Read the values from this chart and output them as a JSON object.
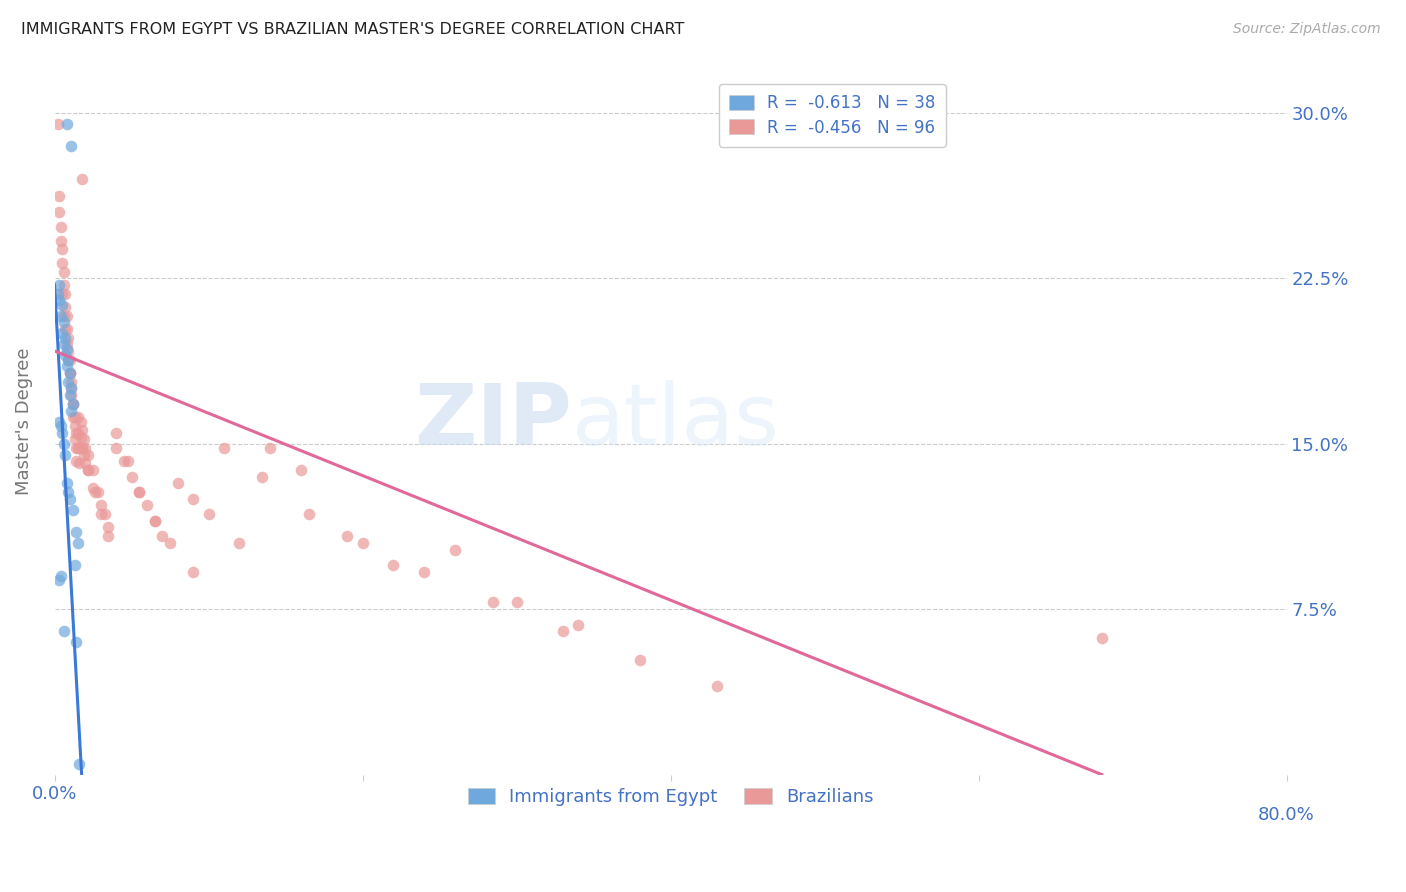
{
  "title": "IMMIGRANTS FROM EGYPT VS BRAZILIAN MASTER'S DEGREE CORRELATION CHART",
  "source": "Source: ZipAtlas.com",
  "watermark_zip": "ZIP",
  "watermark_atlas": "atlas",
  "ylabel": "Master's Degree",
  "ytick_labels": [
    "30.0%",
    "22.5%",
    "15.0%",
    "7.5%"
  ],
  "ytick_values": [
    0.3,
    0.225,
    0.15,
    0.075
  ],
  "xtick_labels_bottom": [
    "0.0%",
    "",
    "",
    "",
    "80.0%"
  ],
  "xtick_values_bottom": [
    0.0,
    0.2,
    0.4,
    0.6,
    0.8
  ],
  "xlim": [
    0.0,
    0.8
  ],
  "ylim": [
    0.0,
    0.32
  ],
  "legend_egypt": "R =  -0.613   N = 38",
  "legend_brazil": "R =  -0.456   N = 96",
  "egypt_color": "#6fa8dc",
  "brazil_color": "#ea9999",
  "egypt_line_color": "#3c78d8",
  "brazil_line_color": "#e06999",
  "egypt_scatter_x": [
    0.008,
    0.011,
    0.003,
    0.002,
    0.003,
    0.005,
    0.004,
    0.006,
    0.005,
    0.007,
    0.006,
    0.008,
    0.007,
    0.009,
    0.008,
    0.01,
    0.009,
    0.011,
    0.01,
    0.012,
    0.011,
    0.003,
    0.004,
    0.005,
    0.006,
    0.007,
    0.008,
    0.009,
    0.01,
    0.012,
    0.014,
    0.015,
    0.013,
    0.004,
    0.003,
    0.006,
    0.014,
    0.016
  ],
  "egypt_scatter_y": [
    0.295,
    0.285,
    0.222,
    0.218,
    0.215,
    0.213,
    0.208,
    0.205,
    0.2,
    0.198,
    0.195,
    0.193,
    0.19,
    0.188,
    0.185,
    0.182,
    0.178,
    0.175,
    0.172,
    0.168,
    0.165,
    0.16,
    0.158,
    0.155,
    0.15,
    0.145,
    0.132,
    0.128,
    0.125,
    0.12,
    0.11,
    0.105,
    0.095,
    0.09,
    0.088,
    0.065,
    0.06,
    0.005
  ],
  "brazil_scatter_x": [
    0.002,
    0.018,
    0.003,
    0.003,
    0.004,
    0.004,
    0.005,
    0.005,
    0.006,
    0.006,
    0.007,
    0.007,
    0.008,
    0.008,
    0.009,
    0.009,
    0.01,
    0.01,
    0.011,
    0.011,
    0.012,
    0.012,
    0.013,
    0.013,
    0.014,
    0.014,
    0.015,
    0.015,
    0.016,
    0.016,
    0.017,
    0.017,
    0.018,
    0.018,
    0.019,
    0.019,
    0.02,
    0.02,
    0.022,
    0.022,
    0.025,
    0.025,
    0.028,
    0.03,
    0.033,
    0.035,
    0.04,
    0.045,
    0.05,
    0.055,
    0.06,
    0.065,
    0.07,
    0.08,
    0.09,
    0.1,
    0.12,
    0.14,
    0.16,
    0.19,
    0.22,
    0.26,
    0.3,
    0.34,
    0.005,
    0.006,
    0.007,
    0.008,
    0.009,
    0.01,
    0.011,
    0.012,
    0.013,
    0.014,
    0.015,
    0.018,
    0.022,
    0.026,
    0.03,
    0.035,
    0.04,
    0.048,
    0.055,
    0.065,
    0.075,
    0.09,
    0.11,
    0.135,
    0.165,
    0.2,
    0.24,
    0.285,
    0.33,
    0.38,
    0.43,
    0.68
  ],
  "brazil_scatter_y": [
    0.295,
    0.27,
    0.262,
    0.255,
    0.248,
    0.242,
    0.238,
    0.232,
    0.228,
    0.222,
    0.218,
    0.212,
    0.208,
    0.202,
    0.198,
    0.192,
    0.188,
    0.182,
    0.178,
    0.172,
    0.168,
    0.162,
    0.158,
    0.152,
    0.148,
    0.142,
    0.162,
    0.155,
    0.148,
    0.141,
    0.16,
    0.153,
    0.156,
    0.148,
    0.152,
    0.145,
    0.148,
    0.141,
    0.145,
    0.138,
    0.138,
    0.13,
    0.128,
    0.122,
    0.118,
    0.112,
    0.148,
    0.142,
    0.135,
    0.128,
    0.122,
    0.115,
    0.108,
    0.132,
    0.125,
    0.118,
    0.105,
    0.148,
    0.138,
    0.108,
    0.095,
    0.102,
    0.078,
    0.068,
    0.218,
    0.208,
    0.202,
    0.195,
    0.188,
    0.182,
    0.175,
    0.168,
    0.162,
    0.155,
    0.148,
    0.148,
    0.138,
    0.128,
    0.118,
    0.108,
    0.155,
    0.142,
    0.128,
    0.115,
    0.105,
    0.092,
    0.148,
    0.135,
    0.118,
    0.105,
    0.092,
    0.078,
    0.065,
    0.052,
    0.04,
    0.062
  ],
  "egypt_trendline_x": [
    0.0,
    0.018
  ],
  "egypt_trendline_y": [
    0.222,
    -0.005
  ],
  "brazil_trendline_x": [
    0.0,
    0.68
  ],
  "brazil_trendline_y": [
    0.192,
    0.0
  ],
  "background_color": "#ffffff",
  "grid_color": "#cccccc",
  "title_color": "#222222",
  "axis_color": "#4472c4",
  "yaxis_label_color": "#777777",
  "marker_size": 70,
  "marker_alpha": 0.7
}
